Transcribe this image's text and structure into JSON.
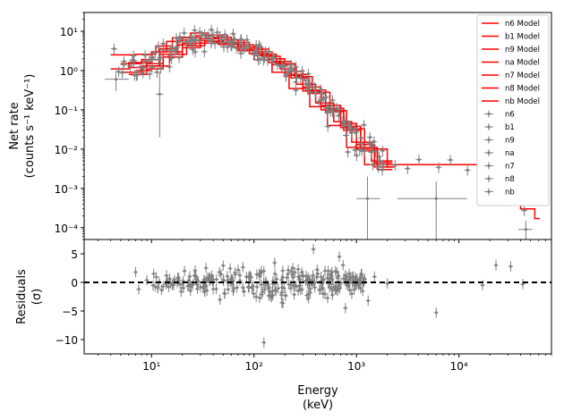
{
  "chart_data": [
    {
      "type": "scatter",
      "panel": "spectrum",
      "x_scale": "log",
      "y_scale": "log",
      "xlim": [
        2.2,
        80000
      ],
      "ylim": [
        5e-05,
        30
      ],
      "ylabel_line1": "Net rate",
      "ylabel_line2": "(counts s⁻¹ keV⁻¹)",
      "x_ticks": [
        "10¹",
        "10²",
        "10³",
        "10⁴"
      ],
      "y_ticks": [
        "10⁻⁴",
        "10⁻³",
        "10⁻²",
        "10⁻¹",
        "10⁰",
        "10¹"
      ],
      "legend_position": "top-right",
      "legend_entries": [
        "n6 Model",
        "b1 Model",
        "n9 Model",
        "na Model",
        "n7 Model",
        "n8 Model",
        "nb Model",
        "n6",
        "b1",
        "n9",
        "na",
        "n7",
        "n8",
        "nb"
      ],
      "model_color": "#ff0000",
      "data_color": "#808080",
      "model_steps": [
        {
          "e": [
            4,
            6,
            10,
            14,
            20,
            30,
            45,
            70,
            100,
            150,
            220,
            350,
            520,
            800,
            1200,
            2000,
            13000,
            25000,
            40000,
            55000
          ],
          "r": [
            1.1,
            1.6,
            3.0,
            5.5,
            7.0,
            6.5,
            5.0,
            3.2,
            1.9,
            0.9,
            0.35,
            0.12,
            0.04,
            0.011,
            0.004,
            0.004,
            0.004,
            0.0008,
            0.0003,
            0.00017
          ]
        },
        {
          "e": [
            4,
            7,
            11,
            16,
            24,
            36,
            55,
            80,
            120,
            180,
            260,
            400,
            600,
            900,
            1400,
            2000
          ],
          "r": [
            2.5,
            2.6,
            4.2,
            6.8,
            9.0,
            8.0,
            6.0,
            4.0,
            2.3,
            1.1,
            0.45,
            0.15,
            0.05,
            0.015,
            0.005,
            0.005
          ]
        },
        {
          "e": [
            5,
            8,
            12,
            18,
            27,
            40,
            60,
            90,
            140,
            200,
            300,
            450,
            700,
            1000,
            1500,
            2000
          ],
          "r": [
            1.5,
            1.9,
            3.6,
            6.0,
            7.8,
            7.0,
            5.2,
            3.5,
            2.0,
            0.95,
            0.38,
            0.13,
            0.045,
            0.013,
            0.0045,
            0.0045
          ]
        },
        {
          "e": [
            5,
            8,
            12,
            18,
            27,
            40,
            60,
            90,
            140,
            200,
            300,
            450,
            700,
            1000,
            1500,
            2000
          ],
          "r": [
            0.9,
            1.3,
            2.6,
            4.5,
            5.8,
            5.3,
            4.0,
            2.7,
            1.6,
            0.75,
            0.3,
            0.1,
            0.035,
            0.01,
            0.0035,
            0.0035
          ]
        },
        {
          "e": [
            6,
            9,
            13,
            20,
            30,
            45,
            70,
            100,
            150,
            230,
            340,
            500,
            750,
            1100,
            1600,
            2000
          ],
          "r": [
            1.2,
            1.5,
            3.0,
            5.0,
            6.5,
            6.0,
            4.5,
            3.0,
            1.7,
            0.8,
            0.32,
            0.11,
            0.038,
            0.011,
            0.004,
            0.004
          ]
        },
        {
          "e": [
            6,
            9,
            13,
            20,
            30,
            45,
            70,
            100,
            150,
            230,
            340,
            500,
            750,
            1100,
            1600,
            2000
          ],
          "r": [
            0.8,
            1.1,
            2.2,
            3.8,
            5.0,
            4.6,
            3.5,
            2.4,
            1.4,
            0.65,
            0.26,
            0.09,
            0.03,
            0.009,
            0.003,
            0.003
          ]
        },
        {
          "e": [
            7,
            10,
            15,
            22,
            33,
            50,
            75,
            110,
            165,
            250,
            370,
            550,
            800,
            1200,
            2000,
            2100
          ],
          "r": [
            1.0,
            1.3,
            2.6,
            4.3,
            5.6,
            5.2,
            3.9,
            2.6,
            1.5,
            0.7,
            0.28,
            0.095,
            0.033,
            0.01,
            0.0035,
            0.0035
          ]
        }
      ],
      "outliers": [
        {
          "x": 4.5,
          "y": 0.6,
          "xerr": [
            3.5,
            6.0
          ],
          "yerr": [
            0.3,
            1.0
          ]
        },
        {
          "x": 12,
          "y": 0.25,
          "xerr": [
            11,
            13
          ],
          "yerr": [
            0.02,
            0.9
          ]
        },
        {
          "x": 1280,
          "y": 0.00055,
          "xerr": [
            1000,
            1700
          ],
          "yerr": [
            5e-05,
            0.002
          ]
        },
        {
          "x": 6000,
          "y": 0.00055,
          "xerr": [
            2500,
            12000
          ],
          "yerr": [
            5e-05,
            0.0015
          ]
        },
        {
          "x": 45000,
          "y": 9e-05,
          "xerr": [
            38000,
            52000
          ],
          "yerr": [
            5e-05,
            0.00015
          ]
        }
      ]
    },
    {
      "type": "scatter",
      "panel": "residuals",
      "x_scale": "log",
      "xlim": [
        2.2,
        80000
      ],
      "ylim": [
        -12.5,
        7.5
      ],
      "xlabel_line1": "Energy",
      "xlabel_line2": "(keV)",
      "ylabel_line1": "Residuals",
      "ylabel_line2": "(σ)",
      "y_ticks": [
        "5",
        "0",
        "−5",
        "−10"
      ],
      "x_ticks": [
        "10¹",
        "10²",
        "10³",
        "10⁴"
      ],
      "zero_line": 0,
      "zero_line_style": "dashed",
      "points": [
        {
          "x": 7.0,
          "y": 1.8
        },
        {
          "x": 7.5,
          "y": -1.2
        },
        {
          "x": 9.0,
          "y": 0.4
        },
        {
          "x": 10.5,
          "y": 1.5
        },
        {
          "x": 11.5,
          "y": -1.0
        },
        {
          "x": 14,
          "y": 1.2
        },
        {
          "x": 16,
          "y": -0.5
        },
        {
          "x": 18,
          "y": 0.8
        },
        {
          "x": 21,
          "y": 2.0
        },
        {
          "x": 24,
          "y": -1.5
        },
        {
          "x": 27,
          "y": 1.0
        },
        {
          "x": 30,
          "y": -0.8
        },
        {
          "x": 34,
          "y": 2.5
        },
        {
          "x": 40,
          "y": -1.2
        },
        {
          "x": 46,
          "y": 1.8
        },
        {
          "x": 52,
          "y": -2.0
        },
        {
          "x": 60,
          "y": 0.5
        },
        {
          "x": 70,
          "y": 2.2
        },
        {
          "x": 80,
          "y": -1.6
        },
        {
          "x": 92,
          "y": 1.0
        },
        {
          "x": 105,
          "y": -2.5
        },
        {
          "x": 118,
          "y": 2.0
        },
        {
          "x": 125,
          "y": -10.5
        },
        {
          "x": 140,
          "y": -1.0
        },
        {
          "x": 160,
          "y": 1.5
        },
        {
          "x": 185,
          "y": -2.2
        },
        {
          "x": 210,
          "y": 0.8
        },
        {
          "x": 240,
          "y": 2.5
        },
        {
          "x": 270,
          "y": -1.5
        },
        {
          "x": 300,
          "y": 1.2
        },
        {
          "x": 340,
          "y": -2.8
        },
        {
          "x": 380,
          "y": 5.8
        },
        {
          "x": 420,
          "y": 1.5
        },
        {
          "x": 470,
          "y": -1.0
        },
        {
          "x": 530,
          "y": 2.0
        },
        {
          "x": 600,
          "y": -0.8
        },
        {
          "x": 680,
          "y": 4.5
        },
        {
          "x": 740,
          "y": 3.0
        },
        {
          "x": 780,
          "y": -4.5
        },
        {
          "x": 850,
          "y": 1.5
        },
        {
          "x": 1000,
          "y": 0.3
        },
        {
          "x": 1150,
          "y": -1.5
        },
        {
          "x": 1300,
          "y": -3.2
        },
        {
          "x": 1500,
          "y": 1.0
        },
        {
          "x": 2000,
          "y": -0.2
        },
        {
          "x": 6000,
          "y": -5.3
        },
        {
          "x": 17000,
          "y": -0.5
        },
        {
          "x": 23000,
          "y": 3.0
        },
        {
          "x": 32000,
          "y": 2.8
        },
        {
          "x": 42000,
          "y": -0.3
        }
      ]
    }
  ]
}
